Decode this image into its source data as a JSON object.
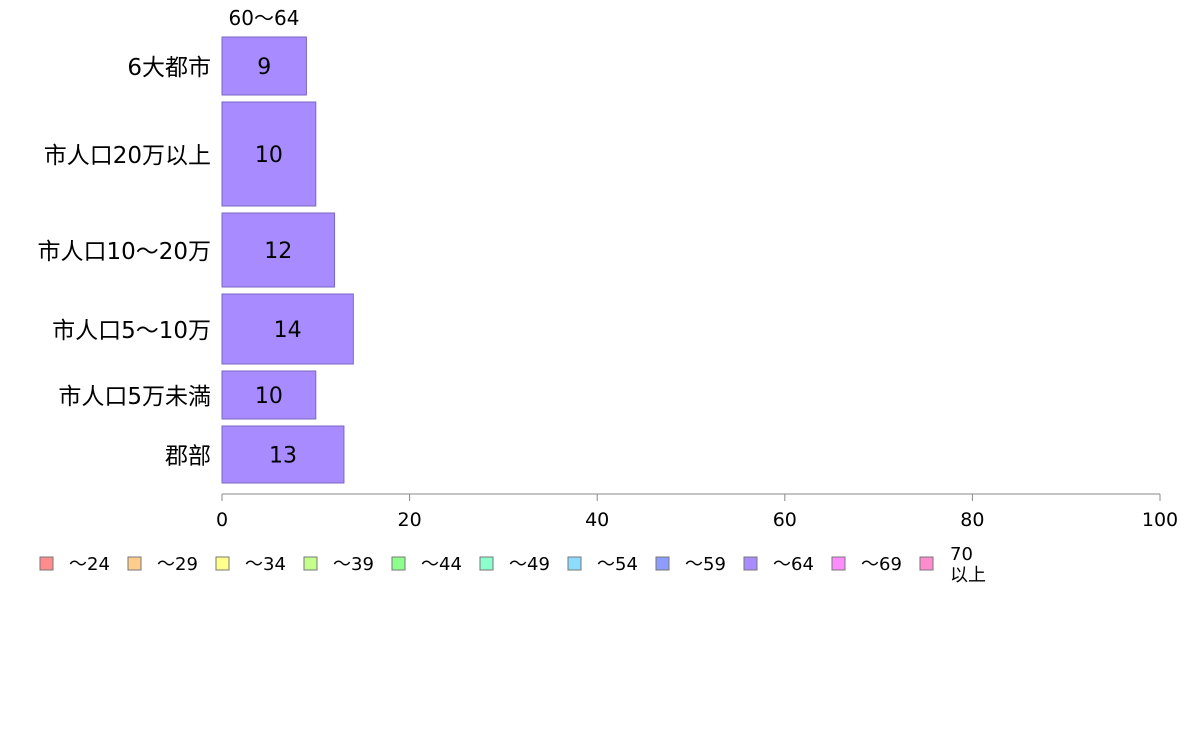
{
  "chart_data": {
    "type": "bar",
    "orientation": "horizontal",
    "title": "",
    "series_header": "60～64",
    "categories": [
      "6大都市",
      "市人口20万以上",
      "市人口10～20万",
      "市人口5～10万",
      "市人口5万未満",
      "郡部"
    ],
    "series": [
      {
        "name": "～64",
        "values": [
          9,
          10,
          12,
          14,
          10,
          13
        ]
      }
    ],
    "xlim": [
      0,
      100
    ],
    "xticks": [
      "0",
      "20",
      "40",
      "60",
      "80",
      "100"
    ],
    "xlabel": "",
    "ylabel": "",
    "grid": false,
    "legend_position": "bottom-left",
    "legend": [
      {
        "label": "～24",
        "color": "#ff8c8c"
      },
      {
        "label": "～29",
        "color": "#ffcc8c"
      },
      {
        "label": "～34",
        "color": "#ffff8c"
      },
      {
        "label": "～39",
        "color": "#c4ff8c"
      },
      {
        "label": "～44",
        "color": "#8cff8c"
      },
      {
        "label": "～49",
        "color": "#8cffcc"
      },
      {
        "label": "～54",
        "color": "#8cdcff"
      },
      {
        "label": "～59",
        "color": "#8c9cff"
      },
      {
        "label": "～64",
        "color": "#a88cff"
      },
      {
        "label": "～69",
        "color": "#ff8cff"
      },
      {
        "label": "70 以上",
        "color": "#ff8ccc"
      }
    ],
    "bar_color": "#a88cff"
  }
}
